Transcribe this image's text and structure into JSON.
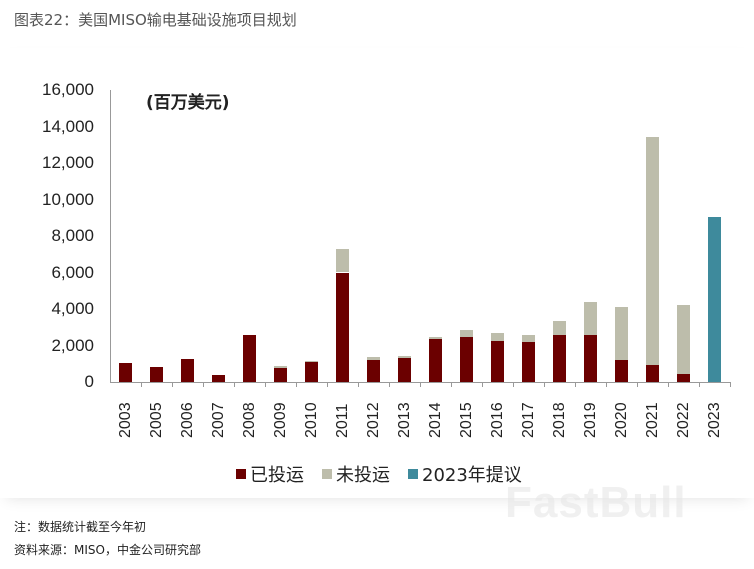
{
  "title": "图表22：美国MISO输电基础设施项目规划",
  "unit_label": "(百万美元)",
  "notes": {
    "note": "注：数据统计截至今年初",
    "source": "资料来源：MISO，中金公司研究部"
  },
  "watermark": "FastBull",
  "legend": [
    {
      "label": "已投运",
      "color": "#6b0000"
    },
    {
      "label": "未投运",
      "color": "#bdbdab"
    },
    {
      "label": "2023年提议",
      "color": "#3e8a9c"
    }
  ],
  "chart_data": {
    "type": "bar",
    "stacked": true,
    "title": "美国MISO输电基础设施项目规划",
    "ylabel": "(百万美元)",
    "xlabel": "",
    "ylim": [
      0,
      16000
    ],
    "yticks": [
      "0",
      "2,000",
      "4,000",
      "6,000",
      "8,000",
      "10,000",
      "12,000",
      "14,000",
      "16,000"
    ],
    "grid": false,
    "legend_position": "bottom",
    "categories": [
      "2003",
      "2005",
      "2006",
      "2007",
      "2008",
      "2009",
      "2010",
      "2011",
      "2012",
      "2013",
      "2014",
      "2015",
      "2016",
      "2017",
      "2018",
      "2019",
      "2020",
      "2021",
      "2022",
      "2023"
    ],
    "series": [
      {
        "name": "已投运",
        "color": "#6b0000",
        "values": [
          1050,
          800,
          1250,
          400,
          2600,
          750,
          1100,
          6000,
          1200,
          1300,
          2350,
          2450,
          2250,
          2200,
          2550,
          2600,
          1200,
          950,
          450,
          0
        ]
      },
      {
        "name": "未投运",
        "color": "#bdbdab",
        "values": [
          0,
          0,
          0,
          0,
          0,
          100,
          50,
          1300,
          150,
          150,
          100,
          400,
          450,
          400,
          800,
          1800,
          2900,
          12450,
          3750,
          0
        ]
      },
      {
        "name": "2023年提议",
        "color": "#3e8a9c",
        "values": [
          0,
          0,
          0,
          0,
          0,
          0,
          0,
          0,
          0,
          0,
          0,
          0,
          0,
          0,
          0,
          0,
          0,
          0,
          0,
          9050
        ]
      }
    ]
  }
}
